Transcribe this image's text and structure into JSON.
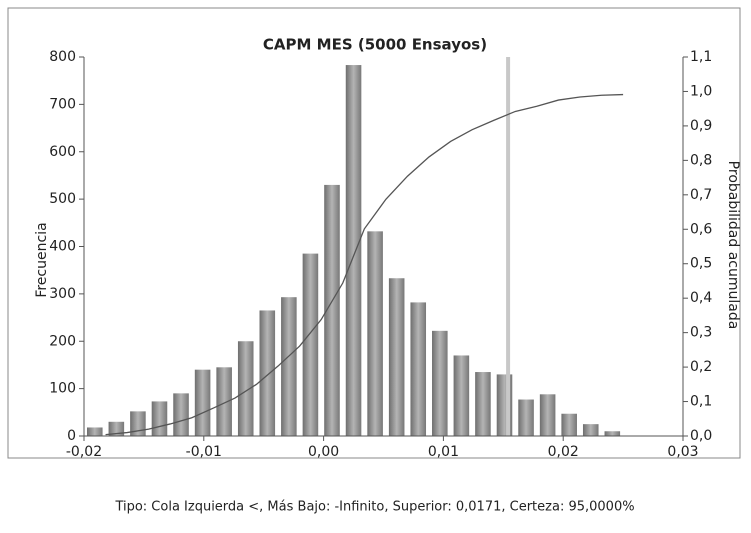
{
  "chart_data": {
    "type": "histogram",
    "title": "CAPM MES (5000 Ensayos)",
    "ylabel": "Frecuencia",
    "y2label": "Probabilidad acumulada",
    "bins": [
      -0.02,
      -0.0182,
      -0.0164,
      -0.0146,
      -0.0128,
      -0.011,
      -0.0092,
      -0.0074,
      -0.0056,
      -0.0038,
      -0.002,
      -0.0002,
      0.0016,
      0.0034,
      0.0052,
      0.007,
      0.0088,
      0.0106,
      0.0124,
      0.0142,
      0.016,
      0.0178,
      0.0196,
      0.0214,
      0.0232,
      0.025
    ],
    "values": [
      18,
      30,
      52,
      73,
      90,
      140,
      145,
      200,
      265,
      293,
      385,
      530,
      783,
      432,
      333,
      282,
      222,
      170,
      135,
      130,
      77,
      88,
      47,
      25,
      10
    ],
    "color": "#8c8c8c",
    "cumulative": {
      "axis": "y2",
      "color": "#555555",
      "x": [
        -0.0182,
        -0.0164,
        -0.0146,
        -0.0128,
        -0.011,
        -0.0092,
        -0.0074,
        -0.0056,
        -0.0038,
        -0.002,
        -0.0002,
        0.0016,
        0.0034,
        0.0052,
        0.007,
        0.0088,
        0.0106,
        0.0124,
        0.0142,
        0.016,
        0.0178,
        0.0196,
        0.0214,
        0.0232,
        0.025
      ],
      "values": [
        0.004,
        0.01,
        0.02,
        0.035,
        0.053,
        0.081,
        0.11,
        0.15,
        0.203,
        0.261,
        0.338,
        0.444,
        0.601,
        0.687,
        0.754,
        0.81,
        0.855,
        0.889,
        0.916,
        0.942,
        0.957,
        0.975,
        0.984,
        0.989,
        0.991
      ]
    },
    "marker": {
      "x": 0.0154,
      "color": "#c8c8c8"
    },
    "xlim": [
      -0.02,
      0.03
    ],
    "xticks": [
      {
        "value": -0.02,
        "label": "-0,02"
      },
      {
        "value": -0.01,
        "label": "-0,01"
      },
      {
        "value": 0,
        "label": "0,00"
      },
      {
        "value": 0.01,
        "label": "0,01"
      },
      {
        "value": 0.02,
        "label": "0,02"
      },
      {
        "value": 0.03,
        "label": "0,03"
      }
    ],
    "ylim": [
      0,
      800
    ],
    "yticks": [
      0,
      100,
      200,
      300,
      400,
      500,
      600,
      700,
      800
    ],
    "y2lim": [
      0,
      1.1
    ],
    "y2ticks": [
      {
        "value": 0,
        "label": "0,0"
      },
      {
        "value": 0.1,
        "label": "0,1"
      },
      {
        "value": 0.2,
        "label": "0,2"
      },
      {
        "value": 0.3,
        "label": "0,3"
      },
      {
        "value": 0.4,
        "label": "0,4"
      },
      {
        "value": 0.5,
        "label": "0,5"
      },
      {
        "value": 0.6,
        "label": "0,6"
      },
      {
        "value": 0.7,
        "label": "0,7"
      },
      {
        "value": 0.8,
        "label": "0,8"
      },
      {
        "value": 0.9,
        "label": "0,9"
      },
      {
        "value": 1.0,
        "label": "1,0"
      },
      {
        "value": 1.1,
        "label": "1,1"
      }
    ],
    "footer": "Tipo: Cola Izquierda <, Más Bajo: -Infinito, Superior: 0,0171, Certeza: 95,0000%"
  }
}
